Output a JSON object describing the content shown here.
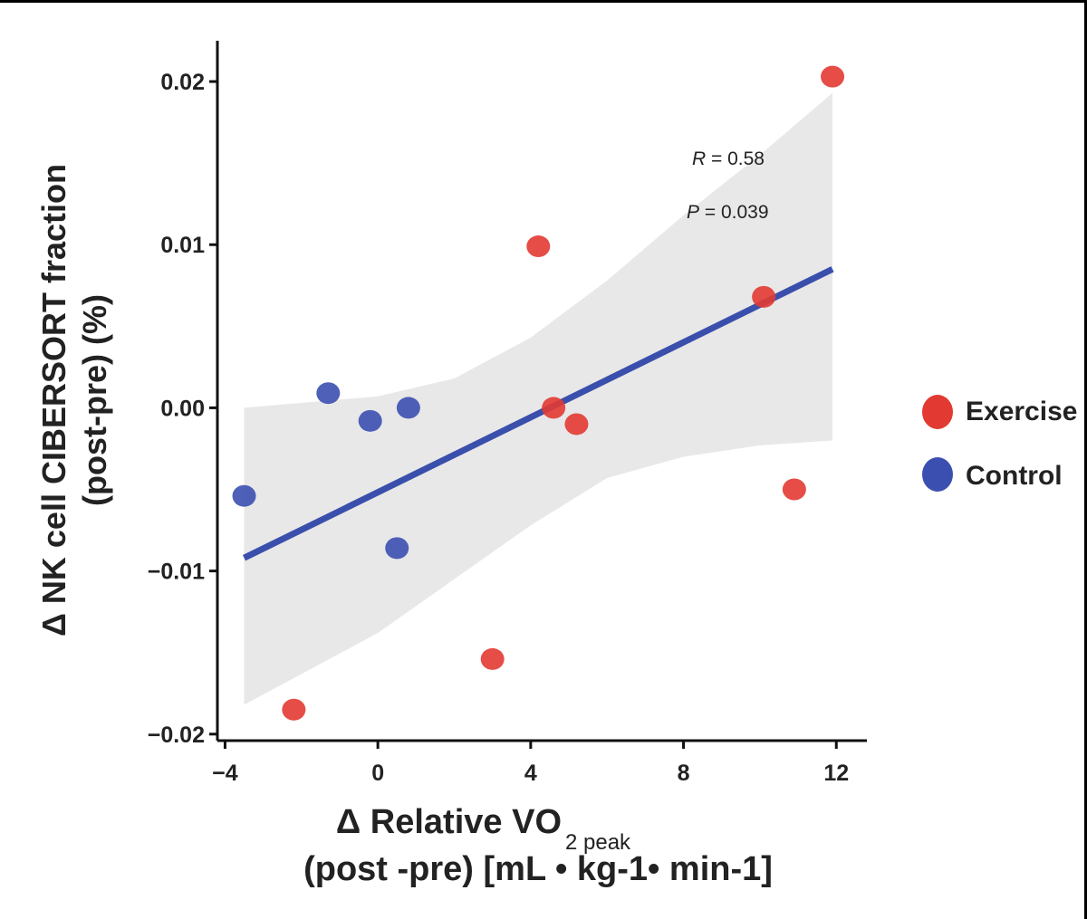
{
  "chart_data": {
    "type": "scatter",
    "title": "",
    "xlabel": "Δ Relative VO",
    "xlabel_subscript": "2 peak",
    "xlabel_line2": "(post -pre) [mL • kg-1• min-1]",
    "ylabel": "Δ NK cell CIBERSORT fraction",
    "ylabel_line2": "(post-pre) (%)",
    "xlim": [
      -4.2,
      12.8
    ],
    "ylim": [
      -0.0204,
      0.0225
    ],
    "x_ticks": [
      -4,
      0,
      4,
      8,
      12
    ],
    "x_tick_labels": [
      "−4",
      "0",
      "4",
      "8",
      "12"
    ],
    "y_ticks": [
      0.02,
      0.01,
      0.0,
      -0.01,
      -0.02
    ],
    "y_tick_labels": [
      "0.02",
      "0.01",
      "0.00",
      "−0.01",
      "−0.02"
    ],
    "series": [
      {
        "name": "Exercise",
        "color": "#e23a32",
        "points": [
          {
            "x": 11.9,
            "y": 0.0203
          },
          {
            "x": 4.2,
            "y": 0.0099
          },
          {
            "x": 10.1,
            "y": 0.0068
          },
          {
            "x": 4.6,
            "y": 0.0
          },
          {
            "x": 5.2,
            "y": -0.001
          },
          {
            "x": 10.9,
            "y": -0.005
          },
          {
            "x": 3.0,
            "y": -0.0154
          },
          {
            "x": -2.2,
            "y": -0.0185
          }
        ]
      },
      {
        "name": "Control",
        "color": "#3b4fb0",
        "points": [
          {
            "x": -1.3,
            "y": 0.0009
          },
          {
            "x": -0.2,
            "y": -0.0008
          },
          {
            "x": 0.8,
            "y": 0.0
          },
          {
            "x": -3.5,
            "y": -0.0054
          },
          {
            "x": 0.5,
            "y": -0.0086
          }
        ]
      }
    ],
    "regression": {
      "color": "#3a4fac",
      "x_start": -3.5,
      "x_end": 11.9,
      "y_start": -0.0092,
      "y_end": 0.0085,
      "ci_color": "#e8e8e8",
      "ci_upper": [
        {
          "x": -3.5,
          "y": 0.0
        },
        {
          "x": 0.0,
          "y": 0.0007
        },
        {
          "x": 2.0,
          "y": 0.0018
        },
        {
          "x": 4.0,
          "y": 0.0043
        },
        {
          "x": 6.0,
          "y": 0.0078
        },
        {
          "x": 8.0,
          "y": 0.0118
        },
        {
          "x": 10.0,
          "y": 0.0155
        },
        {
          "x": 11.9,
          "y": 0.0193
        }
      ],
      "ci_lower": [
        {
          "x": 11.9,
          "y": -0.002
        },
        {
          "x": 10.0,
          "y": -0.0023
        },
        {
          "x": 8.0,
          "y": -0.003
        },
        {
          "x": 6.0,
          "y": -0.0043
        },
        {
          "x": 4.0,
          "y": -0.0072
        },
        {
          "x": 2.0,
          "y": -0.0105
        },
        {
          "x": 0.0,
          "y": -0.0138
        },
        {
          "x": -3.5,
          "y": -0.0182
        }
      ]
    },
    "annotations": {
      "r_label": "R",
      "r_text": " = 0.58",
      "p_label": "P",
      "p_text": " = 0.039"
    },
    "legend": {
      "position": "right",
      "entries": [
        "Exercise",
        "Control"
      ]
    }
  }
}
